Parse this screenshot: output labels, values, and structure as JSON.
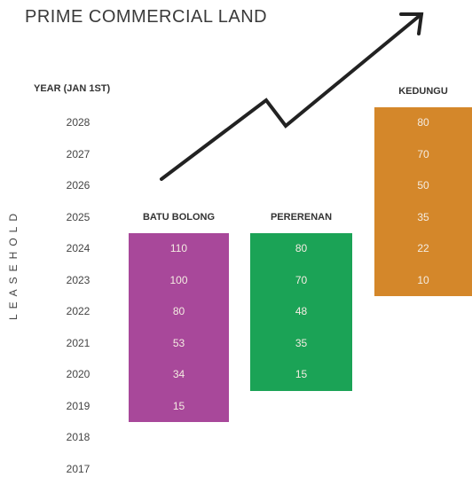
{
  "title": "PRIME COMMERCIAL LAND",
  "side_label": "LEASEHOLD",
  "chart_data": {
    "type": "table",
    "y_axis_title": "YEAR (JAN 1ST)",
    "years": [
      "2028",
      "2027",
      "2026",
      "2025",
      "2024",
      "2023",
      "2022",
      "2021",
      "2020",
      "2019",
      "2018",
      "2017"
    ],
    "series": [
      {
        "name": "BATU BOLONG",
        "color": "#a8489a",
        "values": [
          {
            "year": "2024",
            "value": 110
          },
          {
            "year": "2023",
            "value": 100
          },
          {
            "year": "2022",
            "value": 80
          },
          {
            "year": "2021",
            "value": 53
          },
          {
            "year": "2020",
            "value": 34
          },
          {
            "year": "2019",
            "value": 15
          }
        ]
      },
      {
        "name": "PERERENAN",
        "color": "#1ba356",
        "values": [
          {
            "year": "2024",
            "value": 80
          },
          {
            "year": "2023",
            "value": 70
          },
          {
            "year": "2022",
            "value": 48
          },
          {
            "year": "2021",
            "value": 35
          },
          {
            "year": "2020",
            "value": 15
          }
        ]
      },
      {
        "name": "KEDUNGU",
        "color": "#d4872a",
        "values": [
          {
            "year": "2028",
            "value": 80
          },
          {
            "year": "2027",
            "value": 70
          },
          {
            "year": "2026",
            "value": 50
          },
          {
            "year": "2025",
            "value": 35
          },
          {
            "year": "2024",
            "value": 22
          },
          {
            "year": "2023",
            "value": 10
          }
        ]
      }
    ],
    "trend_arrow": true
  }
}
